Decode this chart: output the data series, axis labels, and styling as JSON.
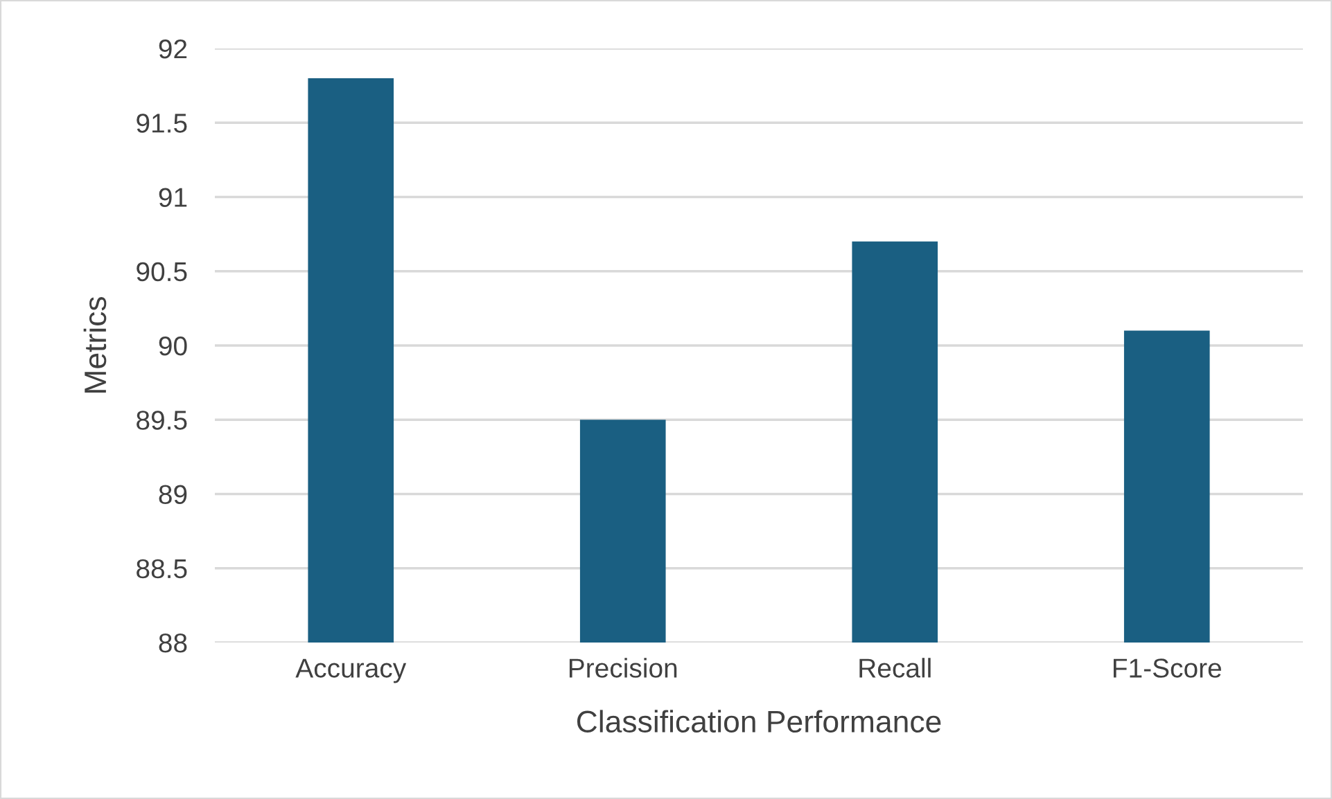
{
  "chart_data": {
    "type": "bar",
    "xlabel": "Classification Performance",
    "ylabel": "Metrics",
    "categories": [
      "Accuracy",
      "Precision",
      "Recall",
      "F1-Score"
    ],
    "values": [
      91.8,
      89.5,
      90.7,
      90.1
    ],
    "color": "#1a5f82",
    "ylim": [
      88,
      92
    ],
    "yticks": [
      88,
      88.5,
      89,
      89.5,
      90,
      90.5,
      91,
      91.5,
      92
    ],
    "grid": "y",
    "legend": false
  }
}
